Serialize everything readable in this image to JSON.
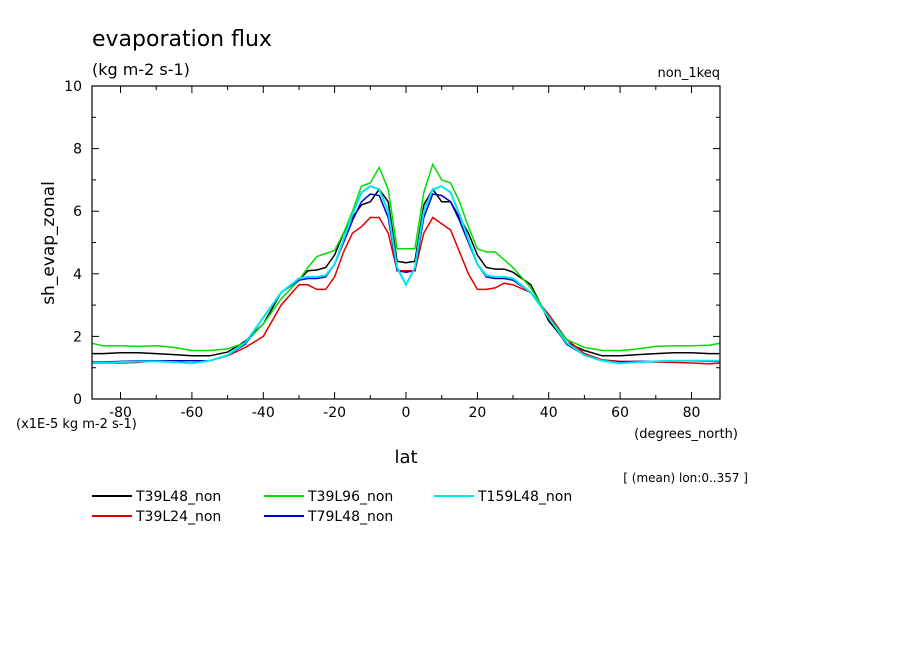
{
  "chart_data": {
    "type": "line",
    "title": "evaporation flux",
    "units": "(kg m-2 s-1)",
    "subtitle_right": "non_1keq",
    "ylabel": "sh_evap_zonal",
    "xlabel": "lat",
    "xunits": "(degrees_north)",
    "yscale_note": "(x1E-5 kg m-2 s-1)",
    "footnote": "[ (mean) lon:0..357 ]",
    "xlim": [
      -88,
      88
    ],
    "ylim": [
      0,
      10
    ],
    "xticks": [
      -80,
      -60,
      -40,
      -20,
      0,
      20,
      40,
      60,
      80
    ],
    "xtick_labels": [
      "-80",
      "-60",
      "-40",
      "-20",
      "0",
      "20",
      "40",
      "60",
      "80"
    ],
    "yticks": [
      0,
      2,
      4,
      6,
      8,
      10
    ],
    "ytick_labels": [
      "0",
      "2",
      "4",
      "6",
      "8",
      "10"
    ],
    "grid": false,
    "legend_position": "bottom-left",
    "x": [
      -88,
      -85,
      -80,
      -75,
      -70,
      -65,
      -60,
      -55,
      -50,
      -45,
      -40,
      -35,
      -30,
      -27.5,
      -25,
      -22.5,
      -20,
      -17.5,
      -15,
      -12.5,
      -10,
      -7.5,
      -5,
      -2.5,
      0,
      2.5,
      5,
      7.5,
      10,
      12.5,
      15,
      17.5,
      20,
      22.5,
      25,
      27.5,
      30,
      35,
      40,
      45,
      50,
      55,
      60,
      65,
      70,
      75,
      80,
      85,
      88
    ],
    "series": [
      {
        "name": "T39L48_non",
        "color": "#000000",
        "values": [
          1.45,
          1.45,
          1.48,
          1.48,
          1.45,
          1.42,
          1.38,
          1.38,
          1.5,
          1.85,
          2.4,
          3.4,
          3.8,
          4.1,
          4.12,
          4.2,
          4.6,
          5.3,
          5.8,
          6.2,
          6.3,
          6.7,
          6.3,
          4.4,
          4.35,
          4.4,
          6.2,
          6.7,
          6.3,
          6.3,
          5.8,
          5.3,
          4.6,
          4.2,
          4.15,
          4.15,
          4.05,
          3.65,
          2.5,
          1.8,
          1.55,
          1.38,
          1.38,
          1.42,
          1.45,
          1.48,
          1.48,
          1.45,
          1.45
        ]
      },
      {
        "name": "T39L24_non",
        "color": "#e00000",
        "values": [
          1.15,
          1.15,
          1.15,
          1.17,
          1.22,
          1.22,
          1.22,
          1.22,
          1.38,
          1.65,
          2.0,
          3.0,
          3.65,
          3.65,
          3.5,
          3.5,
          3.9,
          4.7,
          5.3,
          5.5,
          5.8,
          5.8,
          5.3,
          4.1,
          4.1,
          4.1,
          5.3,
          5.8,
          5.6,
          5.4,
          4.7,
          4.0,
          3.5,
          3.5,
          3.55,
          3.7,
          3.65,
          3.4,
          2.7,
          1.9,
          1.45,
          1.25,
          1.2,
          1.2,
          1.18,
          1.17,
          1.15,
          1.12,
          1.15
        ]
      },
      {
        "name": "T39L96_non",
        "color": "#00dd00",
        "values": [
          1.78,
          1.7,
          1.7,
          1.68,
          1.7,
          1.65,
          1.55,
          1.55,
          1.6,
          1.8,
          2.4,
          3.2,
          3.8,
          4.2,
          4.55,
          4.65,
          4.75,
          5.3,
          6.0,
          6.8,
          6.9,
          7.4,
          6.7,
          4.8,
          4.8,
          4.8,
          6.6,
          7.5,
          7.0,
          6.9,
          6.3,
          5.5,
          4.8,
          4.7,
          4.7,
          4.45,
          4.2,
          3.55,
          2.6,
          1.9,
          1.65,
          1.55,
          1.55,
          1.6,
          1.68,
          1.7,
          1.7,
          1.72,
          1.78
        ]
      },
      {
        "name": "T79L48_non",
        "color": "#0000cc",
        "values": [
          1.18,
          1.18,
          1.2,
          1.22,
          1.22,
          1.22,
          1.22,
          1.22,
          1.4,
          1.75,
          2.6,
          3.4,
          3.8,
          3.85,
          3.85,
          3.9,
          4.3,
          5.0,
          5.7,
          6.3,
          6.55,
          6.5,
          5.8,
          4.1,
          4.05,
          4.1,
          5.8,
          6.55,
          6.5,
          6.3,
          5.7,
          5.0,
          4.3,
          3.9,
          3.85,
          3.85,
          3.8,
          3.4,
          2.6,
          1.75,
          1.4,
          1.22,
          1.18,
          1.2,
          1.2,
          1.22,
          1.22,
          1.2,
          1.2
        ]
      },
      {
        "name": "T159L48_non",
        "color": "#00e5ee",
        "values": [
          1.15,
          1.15,
          1.18,
          1.2,
          1.2,
          1.18,
          1.14,
          1.22,
          1.4,
          1.8,
          2.6,
          3.4,
          3.85,
          3.9,
          3.9,
          3.95,
          4.3,
          5.1,
          5.9,
          6.6,
          6.8,
          6.7,
          6.0,
          4.2,
          3.65,
          4.2,
          6.0,
          6.7,
          6.8,
          6.6,
          5.9,
          5.1,
          4.3,
          3.95,
          3.9,
          3.9,
          3.85,
          3.4,
          2.6,
          1.8,
          1.4,
          1.22,
          1.14,
          1.18,
          1.2,
          1.22,
          1.22,
          1.22,
          1.22
        ]
      }
    ]
  }
}
